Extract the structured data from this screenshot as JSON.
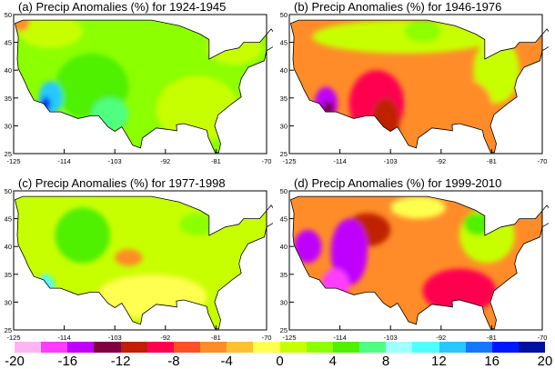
{
  "lon_ticks": [
    "-125",
    "-114",
    "-103",
    "-92",
    "-81",
    "-70"
  ],
  "lat_ticks": [
    "25",
    "30",
    "35",
    "40",
    "45",
    "50"
  ],
  "panels": [
    {
      "title": "(a) Precip Anomalies (%) for 1924-1945",
      "base": 2,
      "regions": [
        [
          -85,
          33,
          9,
          6,
          0
        ],
        [
          -77,
          44,
          6,
          3,
          0
        ],
        [
          -117,
          47,
          7,
          3,
          0
        ],
        [
          -123.5,
          48.5,
          2,
          1.5,
          -5
        ],
        [
          -108,
          37,
          8,
          6,
          4
        ],
        [
          -104,
          32,
          4,
          3,
          7
        ],
        [
          -117,
          35,
          2.5,
          3,
          12
        ],
        [
          -118,
          34,
          1,
          1.2,
          16
        ],
        [
          -114,
          28,
          1.5,
          4,
          11
        ]
      ]
    },
    {
      "title": "(b) Precip Anomalies (%) for 1946-1976",
      "base": -5,
      "regions": [
        [
          -100,
          46,
          20,
          3,
          0
        ],
        [
          -80,
          40,
          5,
          6,
          0
        ],
        [
          -96,
          47,
          4,
          2,
          3
        ],
        [
          -90,
          34,
          9,
          5,
          -6
        ],
        [
          -106,
          34,
          6,
          6,
          -9
        ],
        [
          -104,
          31,
          3,
          4,
          -11
        ],
        [
          -117,
          34,
          2.5,
          3,
          -16
        ],
        [
          -116.5,
          33,
          1.2,
          1.5,
          -14
        ]
      ]
    },
    {
      "title": "(c) Precip Anomalies (%) for 1977-1998",
      "base": 1,
      "regions": [
        [
          -95,
          31,
          12,
          4,
          -1
        ],
        [
          -100,
          38,
          3,
          1.5,
          -5
        ],
        [
          -110,
          42,
          6,
          5,
          4
        ],
        [
          -118,
          32,
          2,
          3,
          11
        ],
        [
          -85,
          44,
          4,
          2,
          3
        ]
      ]
    },
    {
      "title": "(d) Precip Anomalies (%) for 1999-2010",
      "base": -6,
      "regions": [
        [
          -82,
          42,
          6,
          5,
          0
        ],
        [
          -97,
          47,
          6,
          2,
          -1
        ],
        [
          -84,
          44,
          3,
          2,
          4
        ],
        [
          -88,
          32,
          8,
          4,
          -9
        ],
        [
          -108,
          43,
          5,
          3,
          -12
        ],
        [
          -112,
          39,
          4,
          6,
          -15
        ],
        [
          -115,
          33,
          3,
          3,
          -17
        ],
        [
          -121,
          40,
          3,
          3,
          -16
        ],
        [
          -103,
          26,
          1,
          1,
          11
        ]
      ]
    }
  ],
  "colorbar": {
    "labels": [
      "-20",
      "-16",
      "-12",
      "-8",
      "-4",
      "0",
      "4",
      "8",
      "12",
      "16",
      "20"
    ],
    "colors": [
      "#ffb4f5",
      "#ff3cff",
      "#c000ff",
      "#800040",
      "#c02000",
      "#ff0050",
      "#ff5028",
      "#ff8c28",
      "#ffc030",
      "#ffff50",
      "#c8ff00",
      "#8cff00",
      "#50f000",
      "#50ff80",
      "#a0ffff",
      "#50ffff",
      "#28c8ff",
      "#1478ff",
      "#0018ff",
      "#0010a0"
    ]
  }
}
